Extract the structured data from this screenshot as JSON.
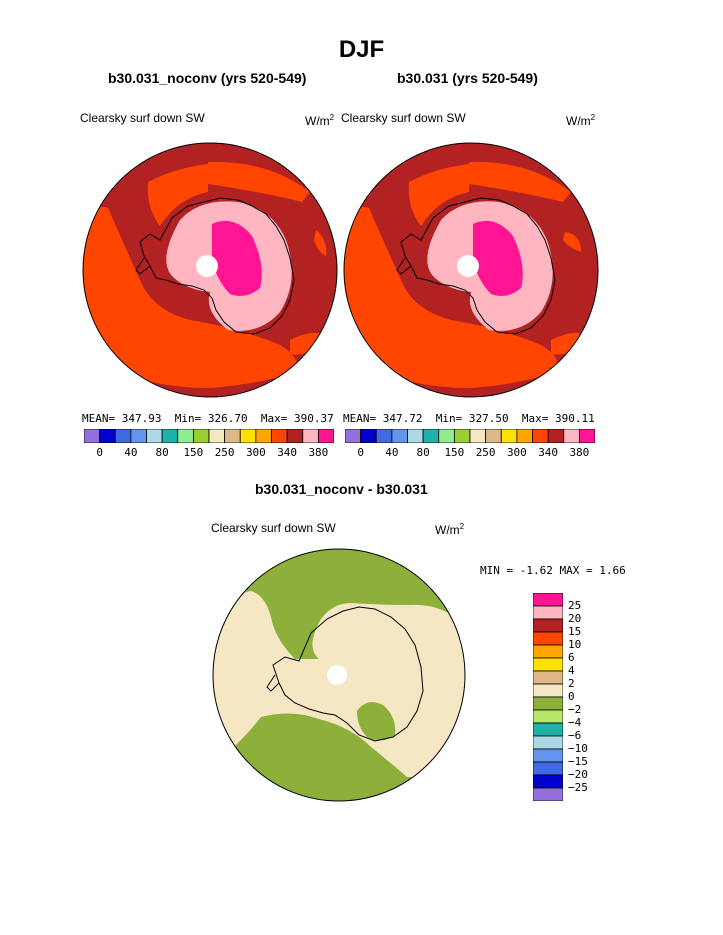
{
  "title": "DJF",
  "panels": [
    {
      "case": "b30.031_noconv (yrs 520-549)",
      "variable": "Clearsky surf down SW",
      "units_base": "W/m",
      "units_exp": "2",
      "stats": {
        "mean_label": "MEAN=",
        "mean": "347.93",
        "min_label": "Min=",
        "min": "326.70",
        "max_label": "Max=",
        "max": "390.37"
      }
    },
    {
      "case": "b30.031 (yrs 520-549)",
      "variable": "Clearsky surf down SW",
      "units_base": "W/m",
      "units_exp": "2",
      "stats": {
        "mean_label": "MEAN=",
        "mean": "347.72",
        "min_label": "Min=",
        "min": "327.50",
        "max_label": "Max=",
        "max": "390.11"
      }
    }
  ],
  "top_colorbar": {
    "colors": [
      "#9370DB",
      "#0000CD",
      "#4169E1",
      "#6495ED",
      "#ADD8E6",
      "#20B2AA",
      "#90EE90",
      "#9ACD32",
      "#F5E6C4",
      "#DEB887",
      "#FFE100",
      "#FFA500",
      "#FF4500",
      "#B22222",
      "#FFB6C1",
      "#FF1493"
    ],
    "tick_labels": [
      "0",
      "40",
      "80",
      "150",
      "250",
      "300",
      "340",
      "380"
    ]
  },
  "diff_panel": {
    "case": "b30.031_noconv - b30.031",
    "variable": "Clearsky surf down SW",
    "units_base": "W/m",
    "units_exp": "2",
    "min_label": "MIN =",
    "min": "-1.62",
    "max_label": "MAX =",
    "max": "1.66"
  },
  "diff_colorbar": {
    "colors_top_to_bottom": [
      "#FF1493",
      "#FFB6C1",
      "#B22222",
      "#FF4500",
      "#FFA500",
      "#FFE100",
      "#DEB887",
      "#F5E6C4",
      "#8DB03A",
      "#B8E86A",
      "#20B2AA",
      "#ADD8E6",
      "#6495ED",
      "#4169E1",
      "#0000CD",
      "#9370DB"
    ],
    "tick_labels_top_to_bottom": [
      "25",
      "20",
      "15",
      "10",
      "6",
      "4",
      "2",
      "0",
      "−2",
      "−4",
      "−6",
      "−10",
      "−15",
      "−20",
      "−25"
    ]
  },
  "chart_data": [
    {
      "type": "heatmap",
      "projection": "south-polar-stereographic",
      "title": "b30.031_noconv (yrs 520-549)",
      "field": "Clearsky surf down SW",
      "units": "W/m2",
      "mean": 347.93,
      "min": 326.7,
      "max": 390.37,
      "contour_levels": [
        0,
        40,
        80,
        150,
        250,
        300,
        340,
        380
      ]
    },
    {
      "type": "heatmap",
      "projection": "south-polar-stereographic",
      "title": "b30.031 (yrs 520-549)",
      "field": "Clearsky surf down SW",
      "units": "W/m2",
      "mean": 347.72,
      "min": 327.5,
      "max": 390.11,
      "contour_levels": [
        0,
        40,
        80,
        150,
        250,
        300,
        340,
        380
      ]
    },
    {
      "type": "heatmap",
      "projection": "south-polar-stereographic",
      "title": "b30.031_noconv - b30.031",
      "field": "Clearsky surf down SW",
      "units": "W/m2",
      "min": -1.62,
      "max": 1.66,
      "contour_levels": [
        -25,
        -20,
        -15,
        -10,
        -6,
        -4,
        -2,
        0,
        2,
        4,
        6,
        10,
        15,
        20,
        25
      ]
    }
  ]
}
